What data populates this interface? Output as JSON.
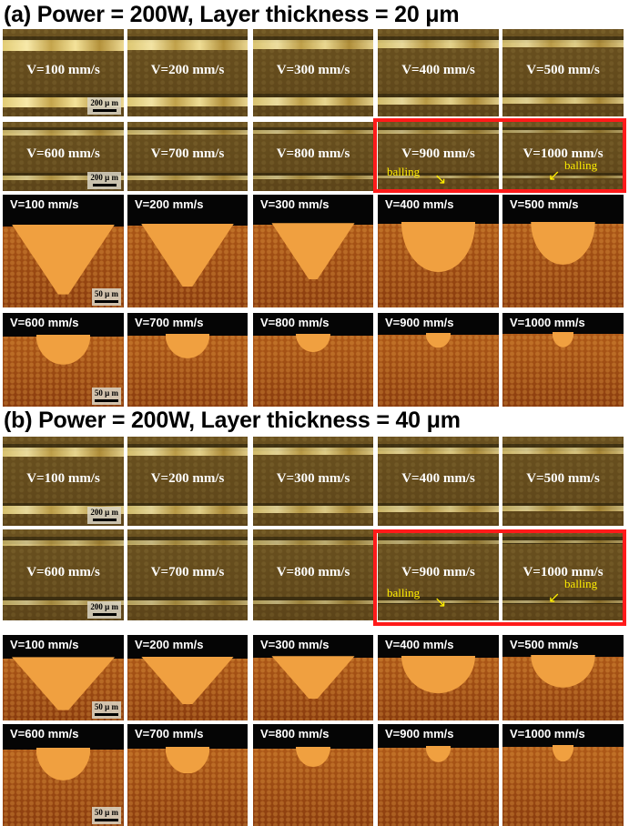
{
  "sections": [
    {
      "title": "(a) Power = 200W, Layer thickness = 20 μm",
      "top_view_labels": [
        "V=100 mm/s",
        "V=200 mm/s",
        "V=300 mm/s",
        "V=400 mm/s",
        "V=500 mm/s",
        "V=600 mm/s",
        "V=700 mm/s",
        "V=800 mm/s",
        "V=900 mm/s",
        "V=1000 mm/s"
      ],
      "top_view_scale": "200 μ m",
      "cross_section_labels": [
        "V=100 mm/s",
        "V=200 mm/s",
        "V=300 mm/s",
        "V=400 mm/s",
        "V=500 mm/s",
        "V=600 mm/s",
        "V=700 mm/s",
        "V=800 mm/s",
        "V=900 mm/s",
        "V=1000 mm/s"
      ],
      "cross_section_scale": "50 μ m",
      "balling_annotation": "balling",
      "highlight_color": "#ff1a1a"
    },
    {
      "title": "(b) Power = 200W, Layer thickness = 40 μm",
      "top_view_labels": [
        "V=100 mm/s",
        "V=200 mm/s",
        "V=300 mm/s",
        "V=400 mm/s",
        "V=500 mm/s",
        "V=600 mm/s",
        "V=700 mm/s",
        "V=800 mm/s",
        "V=900 mm/s",
        "V=1000 mm/s"
      ],
      "top_view_scale": "200 μ m",
      "cross_section_labels": [
        "V=100 mm/s",
        "V=200 mm/s",
        "V=300 mm/s",
        "V=400 mm/s",
        "V=500 mm/s",
        "V=600 mm/s",
        "V=700 mm/s",
        "V=800 mm/s",
        "V=900 mm/s",
        "V=1000 mm/s"
      ],
      "cross_section_scale": "50 μ m",
      "balling_annotation": "balling",
      "highlight_color": "#ff1a1a"
    }
  ]
}
